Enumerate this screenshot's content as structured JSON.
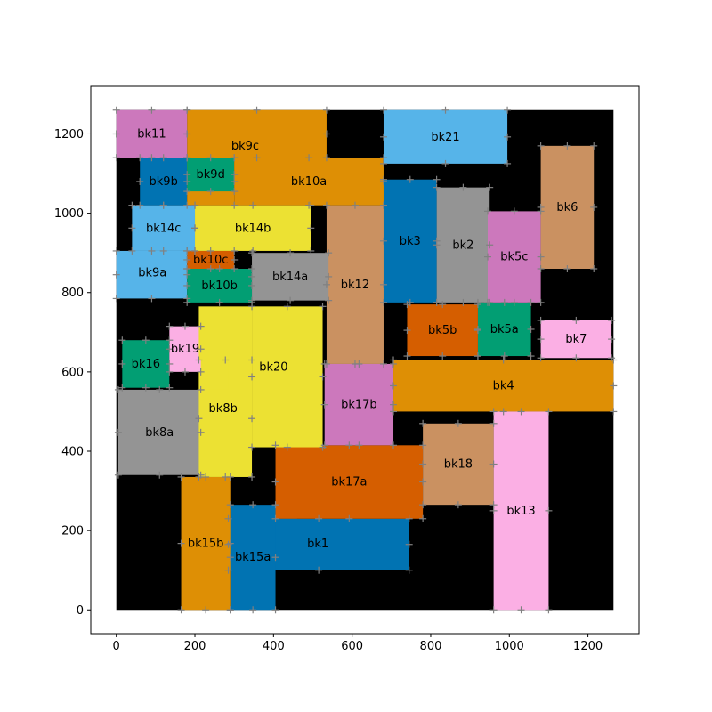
{
  "chart_data": {
    "type": "floorplan-blocks",
    "xlim": [
      -65,
      1330
    ],
    "ylim": [
      -60,
      1320
    ],
    "xticks": [
      0,
      200,
      400,
      600,
      800,
      1000,
      1200
    ],
    "yticks": [
      0,
      200,
      400,
      600,
      800,
      1000,
      1200
    ],
    "background_region": {
      "x0": 0,
      "y0": 0,
      "x1": 1265,
      "y1": 1260,
      "color": "#000000"
    },
    "marker_color": "#808080",
    "blocks": [
      {
        "name": "bk1",
        "color": "#0173b2",
        "rects": [
          [
            285,
            100,
            745,
            230
          ],
          [
            405,
            230,
            460,
            260
          ]
        ]
      },
      {
        "name": "bk2",
        "color": "#949494",
        "rects": [
          [
            815,
            775,
            950,
            1065
          ]
        ]
      },
      {
        "name": "bk3",
        "color": "#0173b2",
        "rects": [
          [
            680,
            775,
            815,
            1085
          ]
        ]
      },
      {
        "name": "bk4",
        "color": "#de8f05",
        "rects": [
          [
            705,
            500,
            1265,
            630
          ]
        ]
      },
      {
        "name": "bk5a",
        "color": "#029e73",
        "rects": [
          [
            920,
            640,
            1055,
            775
          ]
        ]
      },
      {
        "name": "bk5b",
        "color": "#d55e00",
        "rects": [
          [
            740,
            640,
            920,
            770
          ]
        ]
      },
      {
        "name": "bk5c",
        "color": "#cc78bc",
        "rects": [
          [
            945,
            775,
            1080,
            1005
          ]
        ]
      },
      {
        "name": "bk6",
        "color": "#ca9161",
        "rects": [
          [
            1080,
            860,
            1215,
            1170
          ]
        ]
      },
      {
        "name": "bk7",
        "color": "#fbafe4",
        "rects": [
          [
            1080,
            635,
            1260,
            730
          ]
        ]
      },
      {
        "name": "bk8a",
        "color": "#949494",
        "rects": [
          [
            5,
            340,
            215,
            555
          ]
        ]
      },
      {
        "name": "bk8b",
        "color": "#ece133",
        "rects": [
          [
            210,
            335,
            345,
            630
          ],
          [
            210,
            555,
            285,
            680
          ]
        ]
      },
      {
        "name": "bk9a",
        "color": "#56b4e9",
        "rects": [
          [
            0,
            785,
            180,
            905
          ],
          [
            40,
            890,
            180,
            905
          ]
        ]
      },
      {
        "name": "bk9b",
        "color": "#0173b2",
        "rects": [
          [
            60,
            1020,
            180,
            1140
          ]
        ]
      },
      {
        "name": "bk9c",
        "color": "#de8f05",
        "rects": [
          [
            180,
            1140,
            535,
            1260
          ],
          [
            180,
            1020,
            300,
            1140
          ]
        ]
      },
      {
        "name": "bk9d",
        "color": "#029e73",
        "rects": [
          [
            180,
            1055,
            300,
            1140
          ]
        ]
      },
      {
        "name": "bk10a",
        "color": "#de8f05",
        "rects": [
          [
            300,
            1020,
            680,
            1140
          ]
        ]
      },
      {
        "name": "bk10b",
        "color": "#029e73",
        "rects": [
          [
            180,
            775,
            345,
            860
          ]
        ]
      },
      {
        "name": "bk10c",
        "color": "#d55e00",
        "rects": [
          [
            180,
            860,
            300,
            905
          ]
        ]
      },
      {
        "name": "bk11",
        "color": "#cc78bc",
        "rects": [
          [
            0,
            1140,
            180,
            1260
          ]
        ]
      },
      {
        "name": "bk12",
        "color": "#ca9161",
        "rects": [
          [
            535,
            620,
            680,
            1020
          ]
        ]
      },
      {
        "name": "bk13",
        "color": "#fbafe4",
        "rects": [
          [
            960,
            0,
            1100,
            500
          ]
        ]
      },
      {
        "name": "bk14a",
        "color": "#949494",
        "rects": [
          [
            345,
            780,
            540,
            900
          ]
        ]
      },
      {
        "name": "bk14b",
        "color": "#ece133",
        "rects": [
          [
            200,
            905,
            495,
            1020
          ]
        ]
      },
      {
        "name": "bk14c",
        "color": "#56b4e9",
        "rects": [
          [
            40,
            905,
            200,
            1020
          ]
        ]
      },
      {
        "name": "bk15a",
        "color": "#0173b2",
        "rects": [
          [
            290,
            0,
            405,
            265
          ]
        ]
      },
      {
        "name": "bk15b",
        "color": "#de8f05",
        "rects": [
          [
            165,
            0,
            290,
            335
          ]
        ]
      },
      {
        "name": "bk16",
        "color": "#029e73",
        "rects": [
          [
            15,
            560,
            135,
            680
          ]
        ]
      },
      {
        "name": "bk17a",
        "color": "#d55e00",
        "rects": [
          [
            405,
            230,
            780,
            415
          ]
        ]
      },
      {
        "name": "bk17b",
        "color": "#cc78bc",
        "rects": [
          [
            530,
            415,
            705,
            620
          ]
        ]
      },
      {
        "name": "bk18",
        "color": "#ca9161",
        "rects": [
          [
            780,
            265,
            960,
            470
          ]
        ]
      },
      {
        "name": "bk19",
        "color": "#fbafe4",
        "rects": [
          [
            135,
            600,
            215,
            715
          ]
        ]
      },
      {
        "name": "bk20",
        "color": "#ece133",
        "rects": [
          [
            345,
            410,
            525,
            765
          ],
          [
            210,
            630,
            345,
            765
          ]
        ]
      },
      {
        "name": "bk21",
        "color": "#56b4e9",
        "rects": [
          [
            680,
            1125,
            995,
            1260
          ]
        ]
      }
    ],
    "label_positions_note": "labels at block centroid"
  }
}
